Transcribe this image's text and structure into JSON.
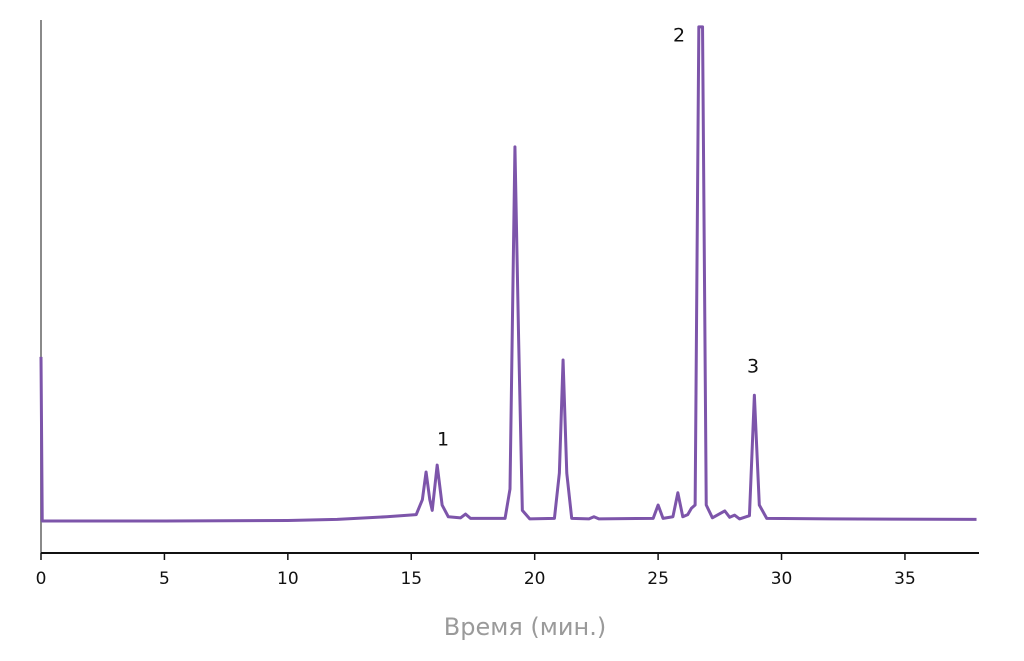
{
  "chart_data": {
    "type": "line",
    "x_label": "Время (мин.)",
    "annotations": [
      "1",
      "2",
      "3"
    ],
    "xlim": [
      0,
      38
    ],
    "xticks": [
      0,
      5,
      10,
      15,
      20,
      25,
      30,
      35
    ],
    "ylim": [
      0,
      100
    ],
    "series": [
      {
        "color": "#7d55aa",
        "x": [
          0,
          0.05,
          5,
          10,
          12,
          14,
          15.2,
          15.45,
          15.6,
          15.75,
          15.85,
          16.05,
          16.25,
          16.5,
          17.0,
          17.2,
          17.4,
          18.8,
          19.0,
          19.2,
          19.35,
          19.5,
          19.8,
          20.8,
          21.0,
          21.15,
          21.3,
          21.5,
          22.2,
          22.4,
          22.6,
          24.8,
          25.0,
          25.2,
          25.6,
          25.8,
          26.0,
          26.2,
          26.35,
          26.5,
          26.65,
          26.8,
          26.95,
          27.2,
          27.7,
          27.9,
          28.1,
          28.3,
          28.7,
          28.9,
          29.1,
          29.4,
          32,
          37.9
        ],
        "values": [
          36.8,
          6.0,
          6.0,
          6.1,
          6.3,
          6.8,
          7.2,
          10,
          15.2,
          10,
          8,
          16.5,
          9,
          6.8,
          6.6,
          7.3,
          6.5,
          6.5,
          12,
          76.2,
          40,
          8,
          6.4,
          6.5,
          15,
          36.2,
          15,
          6.5,
          6.4,
          6.8,
          6.4,
          6.5,
          9.0,
          6.5,
          6.8,
          11.3,
          6.8,
          7.2,
          8.4,
          9,
          98.7,
          98.7,
          9,
          6.6,
          7.9,
          6.7,
          7.1,
          6.4,
          7,
          29.6,
          9,
          6.5,
          6.4,
          6.3
        ]
      }
    ]
  }
}
